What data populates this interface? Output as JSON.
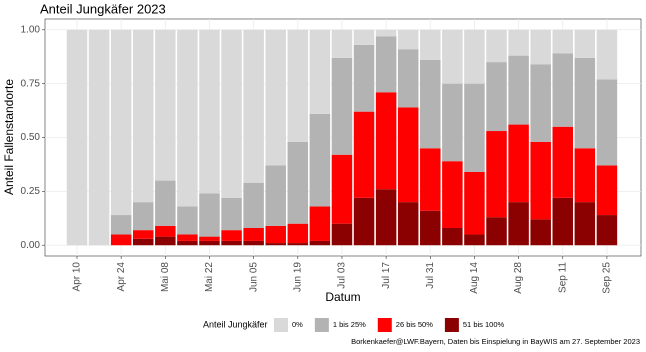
{
  "chart_data": {
    "type": "stacked-bar",
    "title": "Anteil Jungkäfer 2023",
    "x_label": "Datum",
    "y_label": "Anteil Fallenstandorte",
    "legend_title": "Anteil Jungkäfer",
    "caption": "Borkenkaefer@LWF.Bayern, Daten bis Einspielung in BayWIS am 27. September 2023",
    "categories": [
      "Apr 10",
      null,
      "Apr 24",
      null,
      "Mai 08",
      null,
      "Mai 22",
      null,
      "Jun 05",
      null,
      "Jun 19",
      null,
      "Jul 03",
      null,
      "Jul 17",
      null,
      "Jul 31",
      null,
      "Aug 14",
      null,
      "Aug 28",
      null,
      "Sep 11",
      null,
      "Sep 25"
    ],
    "series": [
      {
        "name": "0%",
        "color": "#d9d9d9",
        "values": [
          1,
          1,
          0.86,
          0.8,
          0.7,
          0.82,
          0.76,
          0.78,
          0.71,
          0.63,
          0.52,
          0.39,
          0.13,
          0.07,
          0.03,
          0.09,
          0.14,
          0.25,
          0.25,
          0.15,
          0.12,
          0.16,
          0.11,
          0.13,
          0.23
        ]
      },
      {
        "name": "1 bis 25%",
        "color": "#b3b3b3",
        "values": [
          0,
          0,
          0.09,
          0.13,
          0.21,
          0.13,
          0.2,
          0.15,
          0.21,
          0.28,
          0.38,
          0.43,
          0.45,
          0.31,
          0.26,
          0.27,
          0.41,
          0.36,
          0.41,
          0.32,
          0.32,
          0.36,
          0.34,
          0.42,
          0.4
        ]
      },
      {
        "name": "26 bis 50%",
        "color": "#ff0000",
        "values": [
          0,
          0,
          0.05,
          0.04,
          0.05,
          0.03,
          0.02,
          0.05,
          0.06,
          0.08,
          0.09,
          0.16,
          0.32,
          0.4,
          0.45,
          0.44,
          0.29,
          0.31,
          0.29,
          0.4,
          0.36,
          0.36,
          0.33,
          0.25,
          0.23
        ]
      },
      {
        "name": "51 bis 100%",
        "color": "#8b0000",
        "values": [
          0,
          0,
          0,
          0.03,
          0.04,
          0.02,
          0.02,
          0.02,
          0.02,
          0.01,
          0.01,
          0.02,
          0.1,
          0.22,
          0.26,
          0.2,
          0.16,
          0.08,
          0.05,
          0.13,
          0.2,
          0.12,
          0.22,
          0.2,
          0.14
        ]
      }
    ],
    "ylim": [
      -0.05,
      1.05
    ],
    "yticks": [
      {
        "value": 0,
        "label": "0.00"
      },
      {
        "value": 0.25,
        "label": "0.25"
      },
      {
        "value": 0.5,
        "label": "0.50"
      },
      {
        "value": 0.75,
        "label": "0.75"
      },
      {
        "value": 1,
        "label": "1.00"
      }
    ],
    "grid": true
  }
}
